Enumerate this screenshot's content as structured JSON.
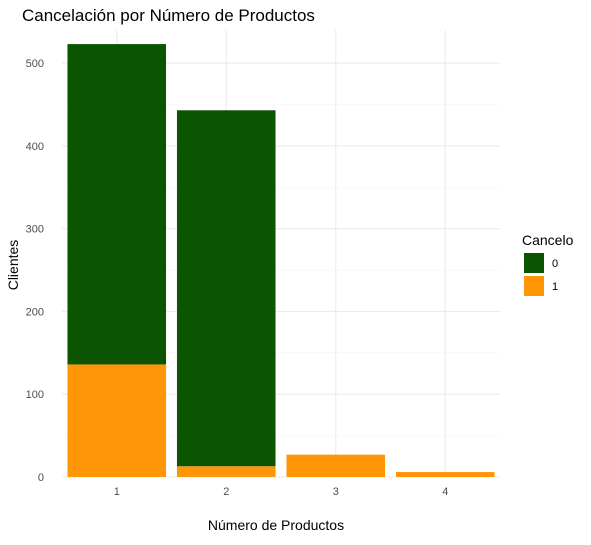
{
  "chart_data": {
    "type": "bar",
    "stacked": true,
    "title": "Cancelación por Número de Productos",
    "xlabel": "Número de Productos",
    "ylabel": "Clientes",
    "categories": [
      "1",
      "2",
      "3",
      "4"
    ],
    "series": [
      {
        "name": "0",
        "color": "#0b5401",
        "values": [
          387,
          430,
          0,
          0
        ]
      },
      {
        "name": "1",
        "color": "#ff9608",
        "values": [
          136,
          13,
          27,
          6
        ]
      }
    ],
    "ylim": [
      0,
      540
    ],
    "yticks": [
      0,
      100,
      200,
      300,
      400,
      500
    ],
    "grid": true,
    "legend": {
      "title": "Cancelo",
      "position": "right"
    }
  }
}
